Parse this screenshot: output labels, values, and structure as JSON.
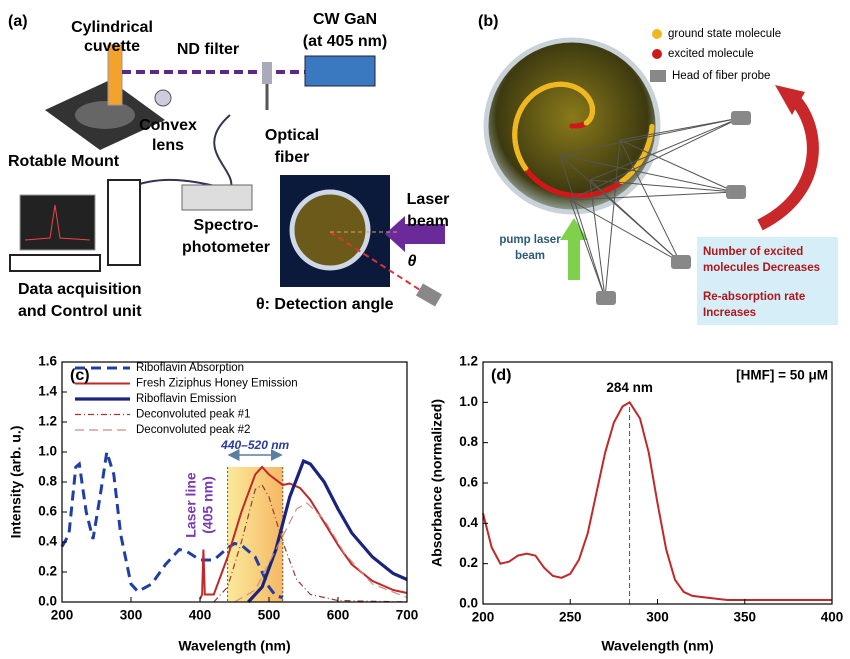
{
  "panel_a": {
    "labels": [
      "(a)",
      "Cylindrical",
      "cuvette",
      "ND filter",
      "CW GaN",
      "(at 405 nm)",
      "Convex",
      "lens",
      "Rotable Mount",
      "Optical",
      "fiber",
      "Spectro-",
      "photometer",
      "Data acquisition",
      "and Control unit",
      "Laser",
      "beam",
      "θ",
      "θ: Detection angle"
    ]
  },
  "panel_b": {
    "labels": [
      "(b)",
      "ground state molecule",
      "excited molecule",
      "Head of fiber probe",
      "pump laser",
      "beam",
      "Number of excited",
      "molecules Decreases",
      "Re-absorption rate",
      "Increases"
    ]
  },
  "chart_data": [
    {
      "type": "line",
      "panel": "(c)",
      "xlabel": "Wavelength (nm)",
      "ylabel": "Intensity (arb. u.)",
      "xlim": [
        200,
        700
      ],
      "xticks": [
        200,
        300,
        400,
        500,
        600,
        700
      ],
      "ylim": [
        0,
        1.6
      ],
      "yticks": [
        {
          "value": 0,
          "label": "0.0"
        },
        {
          "value": 0.2,
          "label": "0.2"
        },
        {
          "value": 0.4,
          "label": "0.4"
        },
        {
          "value": 0.6,
          "label": "0.6"
        },
        {
          "value": 0.8,
          "label": "0.8"
        },
        {
          "value": 1,
          "label": "1.0"
        },
        {
          "value": 1.2,
          "label": "1.2"
        },
        {
          "value": 1.4,
          "label": "1.4"
        },
        {
          "value": 1.6,
          "label": "1.6"
        }
      ],
      "span": [
        440,
        520
      ],
      "span_label": "440–520 nm",
      "annotations": [
        "Laser line",
        "(405 nm)"
      ],
      "series": [
        {
          "name": "Riboflavin Absorption",
          "color": "#1f3fa6",
          "line_style": "dashed",
          "x": [
            200,
            210,
            220,
            225,
            235,
            245,
            255,
            265,
            275,
            285,
            300,
            310,
            330,
            350,
            370,
            380,
            400,
            420,
            440,
            450,
            460,
            480,
            500,
            510,
            520
          ],
          "values": [
            0.37,
            0.45,
            0.9,
            0.92,
            0.6,
            0.42,
            0.7,
            1.0,
            0.85,
            0.45,
            0.12,
            0.07,
            0.12,
            0.25,
            0.35,
            0.34,
            0.28,
            0.28,
            0.36,
            0.39,
            0.38,
            0.3,
            0.1,
            0.04,
            0.03
          ]
        },
        {
          "name": "Fresh Ziziphus Honey Emission",
          "color": "#c0282a",
          "line_style": "solid",
          "x": [
            400,
            403,
            405,
            407,
            420,
            440,
            460,
            480,
            490,
            500,
            520,
            530,
            545,
            560,
            580,
            600,
            620,
            650,
            680,
            700
          ],
          "values": [
            0.02,
            0.05,
            0.35,
            0.05,
            0.05,
            0.3,
            0.6,
            0.85,
            0.9,
            0.85,
            0.78,
            0.79,
            0.76,
            0.68,
            0.53,
            0.38,
            0.25,
            0.14,
            0.08,
            0.06
          ]
        },
        {
          "name": "Riboflavin Emission",
          "color": "#1a237e",
          "line_style": "thick",
          "x": [
            470,
            490,
            510,
            530,
            550,
            560,
            580,
            600,
            620,
            650,
            680,
            700
          ],
          "values": [
            0.0,
            0.1,
            0.35,
            0.7,
            0.94,
            0.92,
            0.8,
            0.62,
            0.46,
            0.3,
            0.19,
            0.15
          ]
        },
        {
          "name": "Deconvoluted peak #1",
          "color": "#9a3a30",
          "line_style": "dashdot",
          "x": [
            420,
            440,
            460,
            480,
            490,
            500,
            520,
            540,
            560,
            600,
            700
          ],
          "values": [
            0.0,
            0.1,
            0.4,
            0.75,
            0.78,
            0.7,
            0.4,
            0.15,
            0.05,
            0.01,
            0.0
          ]
        },
        {
          "name": "Deconvoluted peak #2",
          "color": "#c89080",
          "line_style": "longdash",
          "x": [
            450,
            480,
            510,
            540,
            555,
            580,
            610,
            650,
            700
          ],
          "values": [
            0.0,
            0.08,
            0.35,
            0.62,
            0.66,
            0.55,
            0.32,
            0.12,
            0.03
          ]
        }
      ]
    },
    {
      "type": "line",
      "panel": "(d)",
      "xlabel": "Wavelength (nm)",
      "ylabel": "Absorbance (normalized)",
      "xlim": [
        200,
        400
      ],
      "xticks": [
        200,
        250,
        300,
        350,
        400
      ],
      "ylim": [
        0,
        1.2
      ],
      "yticks": [
        {
          "value": 0,
          "label": "0.0"
        },
        {
          "value": 0.2,
          "label": "0.2"
        },
        {
          "value": 0.4,
          "label": "0.4"
        },
        {
          "value": 0.6,
          "label": "0.6"
        },
        {
          "value": 0.8,
          "label": "0.8"
        },
        {
          "value": 1,
          "label": "1.0"
        },
        {
          "value": 1.2,
          "label": "1.2"
        }
      ],
      "annotation": "[HMF] = 50 μM",
      "peak": {
        "value": 284,
        "label": "284 nm"
      },
      "series": [
        {
          "color": "#c0282a",
          "line_style": "solid",
          "x": [
            200,
            205,
            210,
            215,
            220,
            225,
            230,
            235,
            240,
            245,
            250,
            255,
            260,
            265,
            270,
            275,
            280,
            284,
            290,
            295,
            300,
            305,
            310,
            315,
            320,
            330,
            340,
            360,
            380,
            400
          ],
          "values": [
            0.45,
            0.28,
            0.2,
            0.21,
            0.24,
            0.25,
            0.24,
            0.18,
            0.14,
            0.13,
            0.15,
            0.22,
            0.35,
            0.55,
            0.75,
            0.9,
            0.98,
            1.0,
            0.92,
            0.75,
            0.5,
            0.27,
            0.12,
            0.06,
            0.04,
            0.03,
            0.02,
            0.02,
            0.02,
            0.02
          ]
        }
      ]
    }
  ]
}
